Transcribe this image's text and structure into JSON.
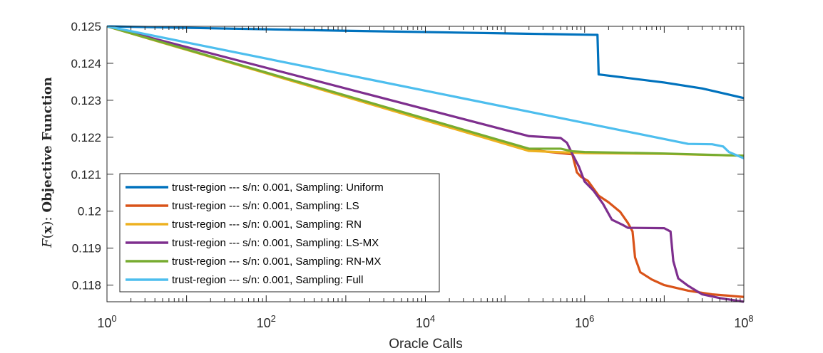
{
  "chart_data": {
    "type": "line",
    "title": "",
    "xlabel": "Oracle Calls",
    "ylabel": "F(x): Objective Function",
    "ylabel_parts": {
      "func": "F",
      "open": "(",
      "arg": "x",
      "close": "):",
      "text": "Objective Function"
    },
    "xscale": "log",
    "xlim": [
      1,
      100000000
    ],
    "ylim": [
      0.11755,
      0.125
    ],
    "xticks": [
      {
        "value": 1,
        "base": "10",
        "exp": "0"
      },
      {
        "value": 100,
        "base": "10",
        "exp": "2"
      },
      {
        "value": 10000,
        "base": "10",
        "exp": "4"
      },
      {
        "value": 1000000,
        "base": "10",
        "exp": "6"
      },
      {
        "value": 100000000,
        "base": "10",
        "exp": "8"
      }
    ],
    "yticks": [
      {
        "value": 0.118,
        "label": "0.118"
      },
      {
        "value": 0.119,
        "label": "0.119"
      },
      {
        "value": 0.12,
        "label": "0.12"
      },
      {
        "value": 0.121,
        "label": "0.121"
      },
      {
        "value": 0.122,
        "label": "0.122"
      },
      {
        "value": 0.123,
        "label": "0.123"
      },
      {
        "value": 0.124,
        "label": "0.124"
      },
      {
        "value": 0.125,
        "label": "0.125"
      }
    ],
    "grid": false,
    "legend_position": "bottom-left",
    "series": [
      {
        "name": "trust-region --- s/n: 0.001, Sampling: Uniform",
        "color": "#0072BD",
        "points": [
          [
            1,
            0.125
          ],
          [
            1000,
            0.12488
          ],
          [
            100000,
            0.12481
          ],
          [
            1300000,
            0.12477
          ],
          [
            1450000,
            0.12477
          ],
          [
            1500000,
            0.1237
          ],
          [
            3000000,
            0.12362
          ],
          [
            10000000,
            0.12348
          ],
          [
            30000000,
            0.12332
          ],
          [
            100000000,
            0.12306
          ]
        ]
      },
      {
        "name": "trust-region --- s/n: 0.001, Sampling: LS",
        "color": "#D95319",
        "points": [
          [
            1,
            0.125
          ],
          [
            200000,
            0.12166
          ],
          [
            500000,
            0.12157
          ],
          [
            700000,
            0.12154
          ],
          [
            800000,
            0.12105
          ],
          [
            900000,
            0.12093
          ],
          [
            1100000,
            0.12082
          ],
          [
            1500000,
            0.12042
          ],
          [
            2000000,
            0.12024
          ],
          [
            2800000,
            0.11998
          ],
          [
            3500000,
            0.11968
          ],
          [
            4000000,
            0.11945
          ],
          [
            4300000,
            0.11875
          ],
          [
            5000000,
            0.11835
          ],
          [
            7000000,
            0.11815
          ],
          [
            10000000,
            0.118
          ],
          [
            20000000,
            0.11785
          ],
          [
            40000000,
            0.11775
          ],
          [
            100000000,
            0.11768
          ]
        ]
      },
      {
        "name": "trust-region --- s/n: 0.001, Sampling: RN",
        "color": "#EDB120",
        "points": [
          [
            1,
            0.125
          ],
          [
            200000,
            0.12163
          ],
          [
            1000000,
            0.12157
          ],
          [
            10000000,
            0.12155
          ],
          [
            100000000,
            0.1215
          ]
        ]
      },
      {
        "name": "trust-region --- s/n: 0.001, Sampling: LS-MX",
        "color": "#7E2F8E",
        "points": [
          [
            1,
            0.125
          ],
          [
            200000,
            0.12203
          ],
          [
            500000,
            0.12198
          ],
          [
            600000,
            0.12185
          ],
          [
            700000,
            0.12155
          ],
          [
            850000,
            0.1212
          ],
          [
            1000000,
            0.1208
          ],
          [
            1300000,
            0.12055
          ],
          [
            1700000,
            0.1202
          ],
          [
            2200000,
            0.11977
          ],
          [
            3000000,
            0.11963
          ],
          [
            3500000,
            0.11955
          ],
          [
            10000000,
            0.11954
          ],
          [
            12000000,
            0.11945
          ],
          [
            13000000,
            0.11865
          ],
          [
            15000000,
            0.11818
          ],
          [
            20000000,
            0.11798
          ],
          [
            30000000,
            0.11775
          ],
          [
            50000000,
            0.11765
          ],
          [
            100000000,
            0.11755
          ]
        ]
      },
      {
        "name": "trust-region --- s/n: 0.001, Sampling: RN-MX",
        "color": "#77AC30",
        "points": [
          [
            1,
            0.125
          ],
          [
            200000,
            0.12169
          ],
          [
            500000,
            0.12169
          ],
          [
            700000,
            0.12162
          ],
          [
            1000000,
            0.1216
          ],
          [
            10000000,
            0.12156
          ],
          [
            100000000,
            0.1215
          ]
        ]
      },
      {
        "name": "trust-region --- s/n: 0.001, Sampling: Full",
        "color": "#4DBEEE",
        "points": [
          [
            1,
            0.125
          ],
          [
            20000000,
            0.12182
          ],
          [
            40000000,
            0.12181
          ],
          [
            55000000,
            0.12175
          ],
          [
            65000000,
            0.1216
          ],
          [
            100000000,
            0.12143
          ]
        ]
      }
    ]
  }
}
